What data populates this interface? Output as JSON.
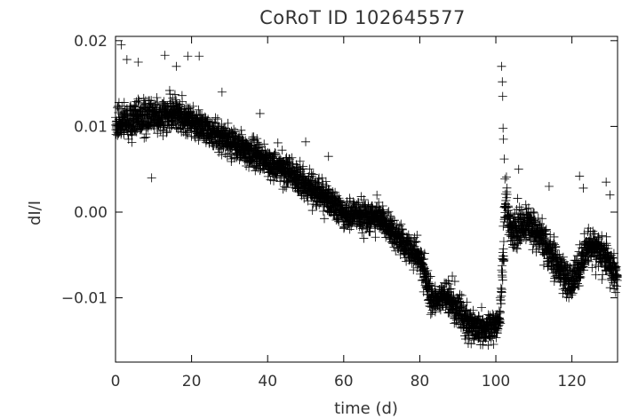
{
  "chart_data": {
    "type": "scatter",
    "title": "CoRoT ID 102645577",
    "xlabel": "time (d)",
    "ylabel": "dI/I",
    "xlim": [
      0,
      132
    ],
    "ylim": [
      -0.0175,
      0.0205
    ],
    "marker": "plus",
    "grid": false,
    "legend": "none",
    "color": "#000000",
    "x_ticks": [
      {
        "value": 0,
        "label": "0"
      },
      {
        "value": 20,
        "label": "20"
      },
      {
        "value": 40,
        "label": "40"
      },
      {
        "value": 60,
        "label": "60"
      },
      {
        "value": 80,
        "label": "80"
      },
      {
        "value": 100,
        "label": "100"
      },
      {
        "value": 120,
        "label": "120"
      }
    ],
    "y_ticks": [
      {
        "value": -0.01,
        "label": "−0.01"
      },
      {
        "value": 0.0,
        "label": "0.00"
      },
      {
        "value": 0.01,
        "label": "0.01"
      },
      {
        "value": 0.02,
        "label": "0.02"
      }
    ],
    "trend": [
      {
        "x": 0,
        "y": 0.0103,
        "spread": 0.0018
      },
      {
        "x": 5,
        "y": 0.0108,
        "spread": 0.0018
      },
      {
        "x": 10,
        "y": 0.0112,
        "spread": 0.0017
      },
      {
        "x": 15,
        "y": 0.0113,
        "spread": 0.0017
      },
      {
        "x": 20,
        "y": 0.0106,
        "spread": 0.0016
      },
      {
        "x": 25,
        "y": 0.0094,
        "spread": 0.0015
      },
      {
        "x": 30,
        "y": 0.0082,
        "spread": 0.0015
      },
      {
        "x": 35,
        "y": 0.007,
        "spread": 0.0015
      },
      {
        "x": 40,
        "y": 0.0058,
        "spread": 0.0015
      },
      {
        "x": 45,
        "y": 0.0047,
        "spread": 0.0015
      },
      {
        "x": 50,
        "y": 0.0033,
        "spread": 0.0015
      },
      {
        "x": 55,
        "y": 0.0018,
        "spread": 0.0015
      },
      {
        "x": 60,
        "y": -0.0002,
        "spread": 0.0014
      },
      {
        "x": 65,
        "y": -0.0004,
        "spread": 0.0015
      },
      {
        "x": 70,
        "y": -0.0008,
        "spread": 0.0015
      },
      {
        "x": 75,
        "y": -0.0033,
        "spread": 0.0015
      },
      {
        "x": 80,
        "y": -0.0055,
        "spread": 0.0015
      },
      {
        "x": 83,
        "y": -0.0102,
        "spread": 0.0016
      },
      {
        "x": 87,
        "y": -0.0098,
        "spread": 0.0016
      },
      {
        "x": 90,
        "y": -0.0112,
        "spread": 0.0016
      },
      {
        "x": 93,
        "y": -0.0132,
        "spread": 0.0016
      },
      {
        "x": 97,
        "y": -0.0135,
        "spread": 0.0016
      },
      {
        "x": 101,
        "y": -0.013,
        "spread": 0.0015
      },
      {
        "x": 102.5,
        "y": 0.001,
        "spread": 0.0035
      },
      {
        "x": 104,
        "y": -0.0025,
        "spread": 0.002
      },
      {
        "x": 108,
        "y": -0.0012,
        "spread": 0.0018
      },
      {
        "x": 112,
        "y": -0.003,
        "spread": 0.0018
      },
      {
        "x": 116,
        "y": -0.0062,
        "spread": 0.0018
      },
      {
        "x": 120,
        "y": -0.0085,
        "spread": 0.0018
      },
      {
        "x": 124,
        "y": -0.004,
        "spread": 0.0018
      },
      {
        "x": 128,
        "y": -0.0045,
        "spread": 0.0018
      },
      {
        "x": 132,
        "y": -0.0075,
        "spread": 0.0018
      }
    ],
    "n_points": 3600,
    "outliers": [
      {
        "x": 1.5,
        "y": 0.0195
      },
      {
        "x": 3,
        "y": 0.0178
      },
      {
        "x": 6,
        "y": 0.0175
      },
      {
        "x": 9.5,
        "y": 0.004
      },
      {
        "x": 13,
        "y": 0.0183
      },
      {
        "x": 16,
        "y": 0.017
      },
      {
        "x": 19,
        "y": 0.0182
      },
      {
        "x": 22,
        "y": 0.0182
      },
      {
        "x": 28,
        "y": 0.014
      },
      {
        "x": 38,
        "y": 0.0115
      },
      {
        "x": 50,
        "y": 0.0082
      },
      {
        "x": 56,
        "y": 0.0065
      },
      {
        "x": 100,
        "y": -0.0135
      },
      {
        "x": 101.5,
        "y": 0.017
      },
      {
        "x": 101.7,
        "y": 0.0152
      },
      {
        "x": 101.8,
        "y": 0.0135
      },
      {
        "x": 101.9,
        "y": 0.0098
      },
      {
        "x": 102,
        "y": 0.0085
      },
      {
        "x": 102.2,
        "y": 0.0062
      },
      {
        "x": 106,
        "y": 0.005
      },
      {
        "x": 114,
        "y": 0.003
      },
      {
        "x": 122,
        "y": 0.0042
      },
      {
        "x": 123,
        "y": 0.0028
      },
      {
        "x": 129,
        "y": 0.0035
      },
      {
        "x": 130,
        "y": 0.002
      }
    ]
  }
}
